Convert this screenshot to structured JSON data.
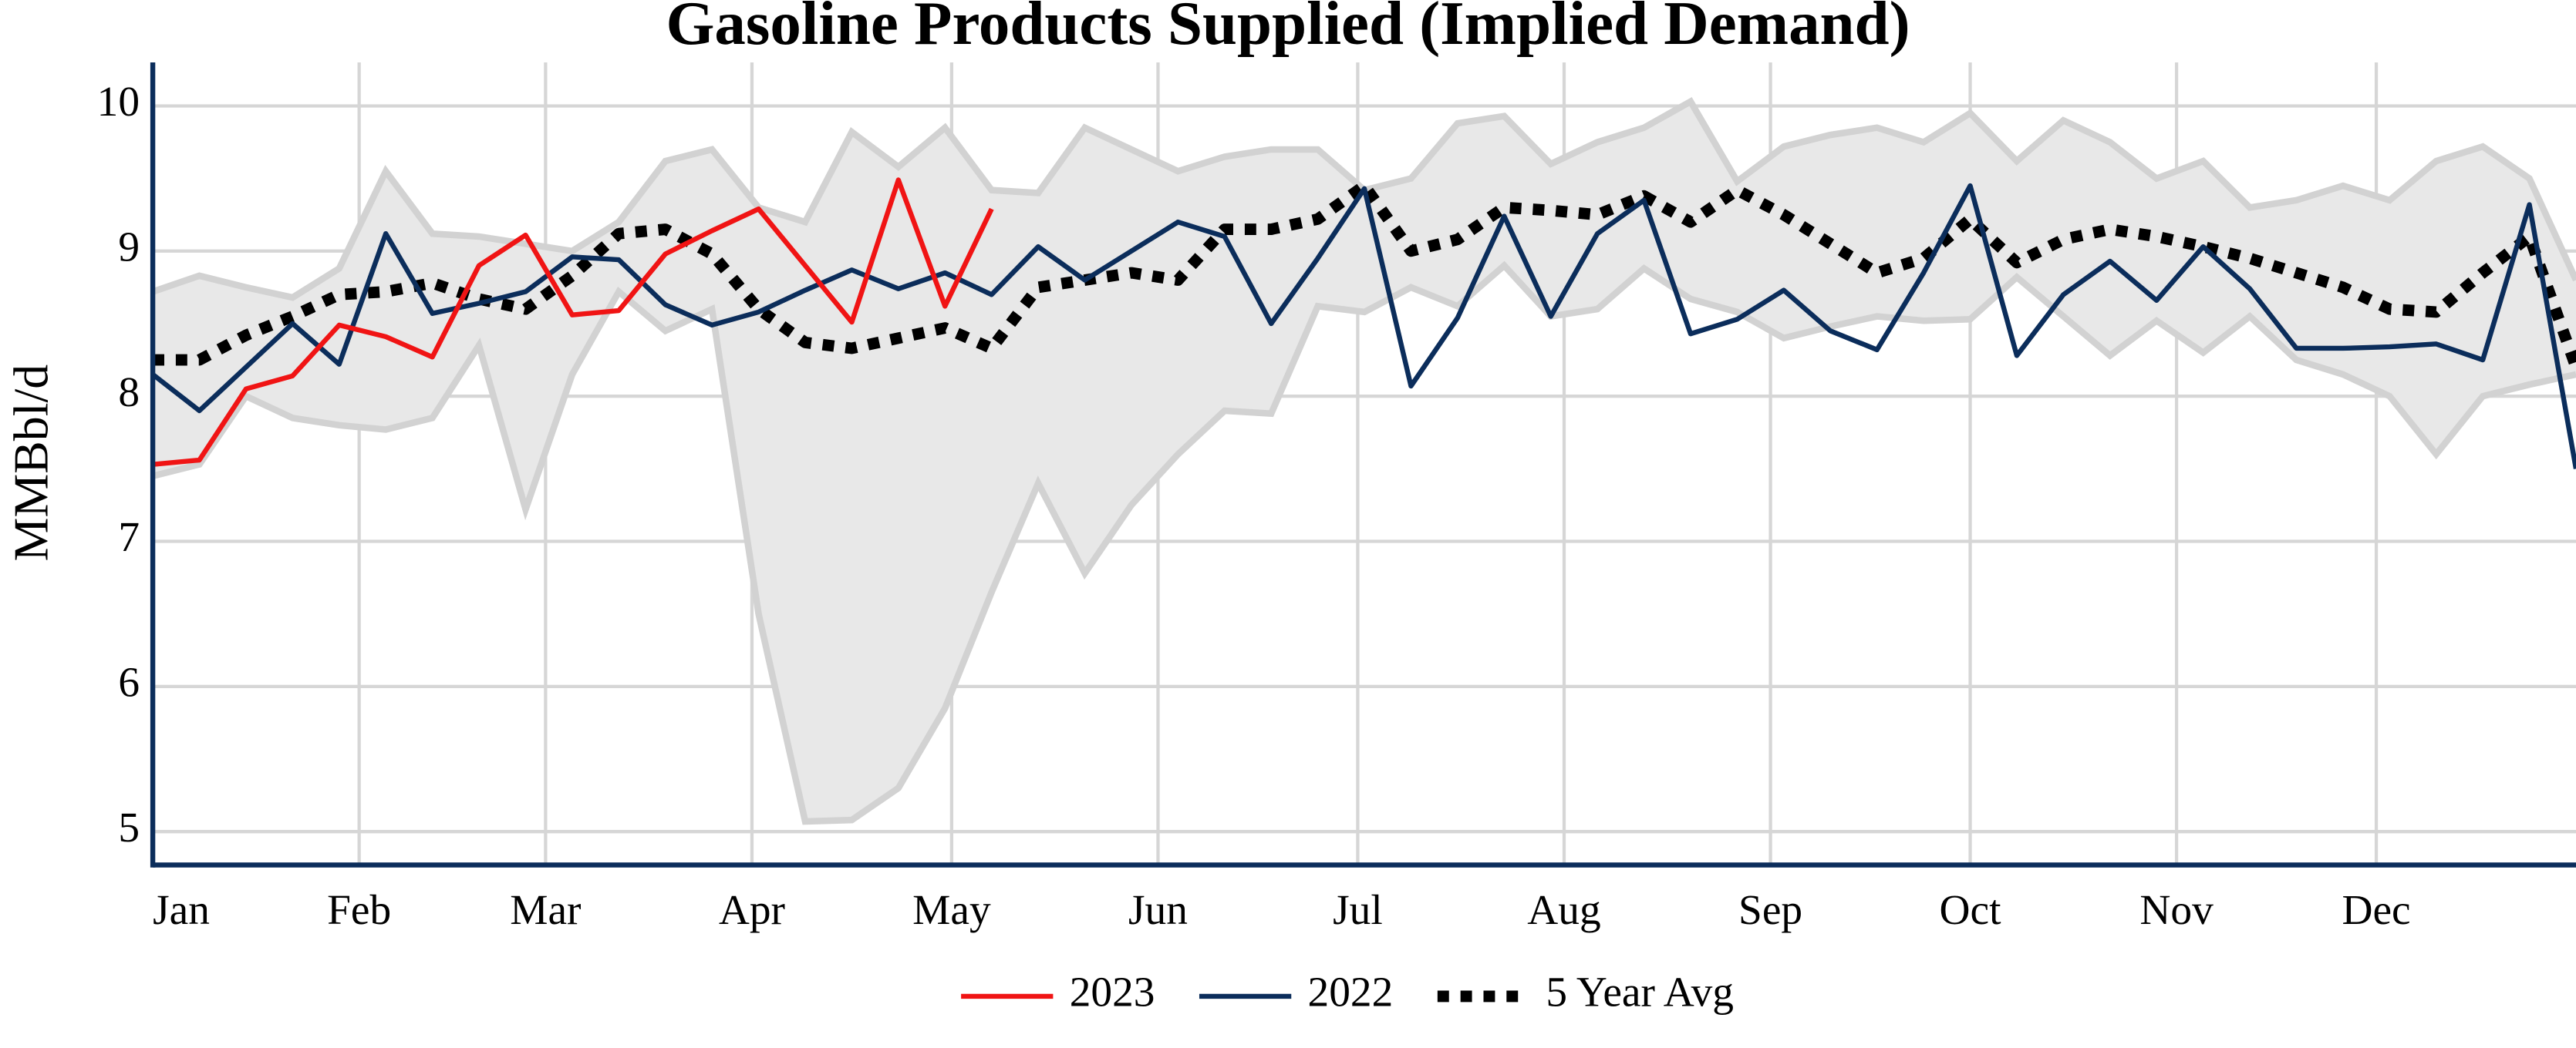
{
  "chart_data": {
    "type": "line",
    "title": "Gasoline Products Supplied (Implied Demand)",
    "y_label": "MMBbl/d",
    "x": [
      0,
      7,
      14,
      21,
      28,
      35,
      42,
      49,
      56,
      63,
      70,
      77,
      84,
      91,
      98,
      105,
      112,
      119,
      126,
      133,
      140,
      147,
      154,
      161,
      168,
      175,
      182,
      189,
      196,
      203,
      210,
      217,
      224,
      231,
      238,
      245,
      252,
      259,
      266,
      273,
      280,
      287,
      294,
      301,
      308,
      315,
      322,
      329,
      336,
      343,
      350,
      357,
      364
    ],
    "xlim": [
      0,
      364
    ],
    "xticks": [
      {
        "value": 0,
        "label": "Jan"
      },
      {
        "value": 31,
        "label": "Feb"
      },
      {
        "value": 59,
        "label": "Mar"
      },
      {
        "value": 90,
        "label": "Apr"
      },
      {
        "value": 120,
        "label": "May"
      },
      {
        "value": 151,
        "label": "Jun"
      },
      {
        "value": 181,
        "label": "Jul"
      },
      {
        "value": 212,
        "label": "Aug"
      },
      {
        "value": 243,
        "label": "Sep"
      },
      {
        "value": 273,
        "label": "Oct"
      },
      {
        "value": 304,
        "label": "Nov"
      },
      {
        "value": 334,
        "label": "Dec"
      }
    ],
    "ylim": [
      4.77,
      10.3
    ],
    "yticks": [
      5,
      6,
      7,
      8,
      9,
      10
    ],
    "grid": true,
    "legend": "bottom",
    "range": {
      "color": "#e8e8e8",
      "edge_color": "#d2d2d2",
      "high": [
        8.72,
        8.83,
        8.75,
        8.68,
        8.88,
        9.55,
        9.12,
        9.1,
        9.05,
        9.0,
        9.2,
        9.62,
        9.7,
        9.3,
        9.2,
        9.82,
        9.58,
        9.85,
        9.42,
        9.4,
        9.85,
        9.7,
        9.55,
        9.65,
        9.7,
        9.7,
        9.42,
        9.5,
        9.88,
        9.93,
        9.6,
        9.75,
        9.85,
        10.03,
        9.48,
        9.72,
        9.8,
        9.85,
        9.75,
        9.95,
        9.62,
        9.9,
        9.75,
        9.5,
        9.62,
        9.3,
        9.35,
        9.45,
        9.35,
        9.62,
        9.72,
        9.5,
        8.8
      ],
      "low": [
        7.45,
        7.53,
        8.0,
        7.85,
        7.8,
        7.77,
        7.85,
        8.35,
        7.22,
        8.15,
        8.72,
        8.45,
        8.6,
        6.5,
        5.07,
        5.08,
        5.3,
        5.85,
        6.65,
        7.4,
        6.78,
        7.25,
        7.6,
        7.9,
        7.88,
        8.62,
        8.58,
        8.75,
        8.62,
        8.9,
        8.55,
        8.6,
        8.88,
        8.67,
        8.58,
        8.4,
        8.48,
        8.55,
        8.52,
        8.53,
        8.82,
        8.55,
        8.28,
        8.52,
        8.3,
        8.55,
        8.25,
        8.15,
        8.0,
        7.6,
        8.0,
        8.08,
        8.15
      ]
    },
    "series": [
      {
        "name": "2023",
        "color": "#f01414",
        "style": "solid",
        "values": [
          7.53,
          7.56,
          8.05,
          8.14,
          8.49,
          8.41,
          8.27,
          8.9,
          9.11,
          8.56,
          8.59,
          8.98,
          9.14,
          9.29,
          8.9,
          8.51,
          9.49,
          8.62,
          9.29,
          null,
          null,
          null,
          null,
          null,
          null,
          null,
          null,
          null,
          null,
          null,
          null,
          null,
          null,
          null,
          null,
          null,
          null,
          null,
          null,
          null,
          null,
          null,
          null,
          null,
          null,
          null,
          null,
          null,
          null,
          null,
          null,
          null,
          null
        ]
      },
      {
        "name": "2022",
        "color": "#0b2d5b",
        "style": "solid",
        "values": [
          8.15,
          7.9,
          8.2,
          8.5,
          8.22,
          9.12,
          8.57,
          8.64,
          8.72,
          8.96,
          8.94,
          8.63,
          8.49,
          8.58,
          8.73,
          8.87,
          8.74,
          8.85,
          8.7,
          9.03,
          8.8,
          9.0,
          9.2,
          9.1,
          8.5,
          8.95,
          9.43,
          8.07,
          8.54,
          9.24,
          8.55,
          9.12,
          9.35,
          8.43,
          8.53,
          8.73,
          8.45,
          8.32,
          8.85,
          9.45,
          8.28,
          8.7,
          8.93,
          8.66,
          9.03,
          8.74,
          8.33,
          8.33,
          8.34,
          8.36,
          8.25,
          9.32,
          7.5
        ]
      },
      {
        "name": "5 Year Avg",
        "color": "#000000",
        "style": "dotted",
        "values": [
          8.25,
          8.25,
          8.42,
          8.55,
          8.7,
          8.72,
          8.78,
          8.67,
          8.6,
          8.83,
          9.12,
          9.15,
          8.98,
          8.6,
          8.37,
          8.33,
          8.4,
          8.47,
          8.33,
          8.75,
          8.8,
          8.85,
          8.8,
          9.15,
          9.15,
          9.22,
          9.45,
          9.0,
          9.08,
          9.3,
          9.28,
          9.25,
          9.38,
          9.2,
          9.42,
          9.25,
          9.05,
          8.85,
          8.95,
          9.22,
          8.92,
          9.08,
          9.15,
          9.1,
          9.03,
          8.95,
          8.85,
          8.75,
          8.6,
          8.58,
          8.85,
          9.1,
          8.2
        ]
      }
    ]
  }
}
